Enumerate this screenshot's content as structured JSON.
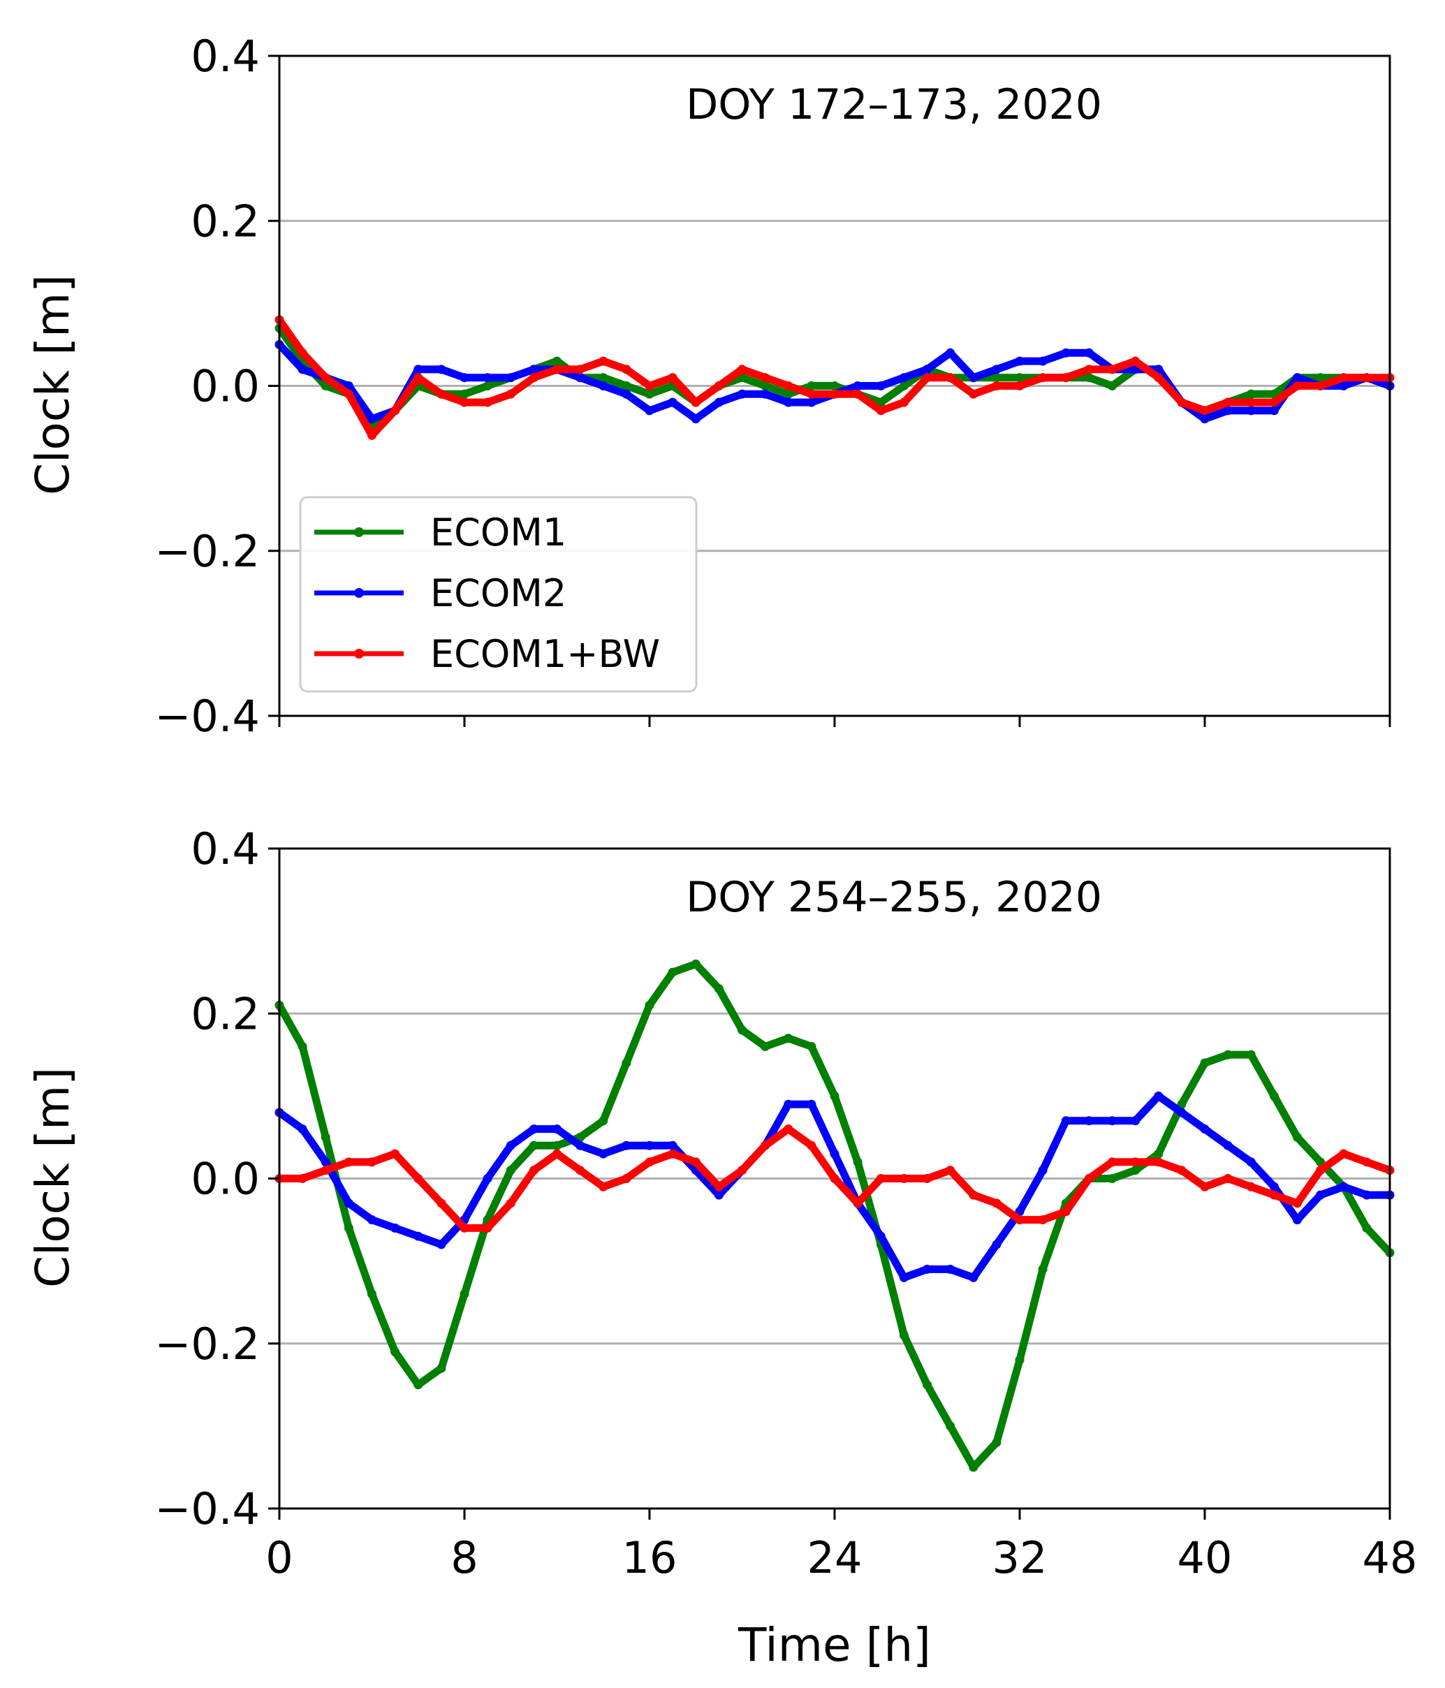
{
  "chart_data": [
    {
      "type": "line",
      "title": "DOY 172–173, 2020",
      "xlabel": "",
      "ylabel": "Clock [m]",
      "xlim": [
        0,
        48
      ],
      "ylim": [
        -0.4,
        0.4
      ],
      "xticks": [
        0,
        8,
        16,
        24,
        32,
        40,
        48
      ],
      "xtick_labels": [
        "",
        "",
        "",
        "",
        "",
        "",
        ""
      ],
      "yticks": [
        -0.4,
        -0.2,
        0.0,
        0.2,
        0.4
      ],
      "ytick_labels": [
        "−0.4",
        "−0.2",
        "0.0",
        "0.2",
        "0.4"
      ],
      "grid": "horizontal",
      "legend": "lower-left",
      "series": [
        {
          "name": "ECOM1",
          "color": "#008000",
          "x": [
            0,
            1,
            2,
            3,
            4,
            5,
            6,
            7,
            8,
            9,
            10,
            11,
            12,
            13,
            14,
            15,
            16,
            17,
            18,
            19,
            20,
            21,
            22,
            23,
            24,
            25,
            26,
            27,
            28,
            29,
            30,
            31,
            32,
            33,
            34,
            35,
            36,
            37,
            38,
            39,
            40,
            41,
            42,
            43,
            44,
            45,
            46,
            47,
            48
          ],
          "y": [
            0.07,
            0.03,
            0.0,
            -0.01,
            -0.05,
            -0.03,
            0.0,
            -0.01,
            -0.01,
            0.0,
            0.01,
            0.02,
            0.03,
            0.01,
            0.01,
            0.0,
            -0.01,
            0.0,
            -0.02,
            0.0,
            0.01,
            0.0,
            -0.01,
            0.0,
            0.0,
            -0.01,
            -0.02,
            0.0,
            0.02,
            0.01,
            0.01,
            0.01,
            0.01,
            0.01,
            0.01,
            0.01,
            0.0,
            0.02,
            0.02,
            -0.02,
            -0.03,
            -0.02,
            -0.01,
            -0.01,
            0.01,
            0.01,
            0.01,
            0.01,
            0.0
          ]
        },
        {
          "name": "ECOM2",
          "color": "#0000ff",
          "x": [
            0,
            1,
            2,
            3,
            4,
            5,
            6,
            7,
            8,
            9,
            10,
            11,
            12,
            13,
            14,
            15,
            16,
            17,
            18,
            19,
            20,
            21,
            22,
            23,
            24,
            25,
            26,
            27,
            28,
            29,
            30,
            31,
            32,
            33,
            34,
            35,
            36,
            37,
            38,
            39,
            40,
            41,
            42,
            43,
            44,
            45,
            46,
            47,
            48
          ],
          "y": [
            0.05,
            0.02,
            0.01,
            0.0,
            -0.04,
            -0.03,
            0.02,
            0.02,
            0.01,
            0.01,
            0.01,
            0.02,
            0.02,
            0.01,
            0.0,
            -0.01,
            -0.03,
            -0.02,
            -0.04,
            -0.02,
            -0.01,
            -0.01,
            -0.02,
            -0.02,
            -0.01,
            0.0,
            0.0,
            0.01,
            0.02,
            0.04,
            0.01,
            0.02,
            0.03,
            0.03,
            0.04,
            0.04,
            0.02,
            0.02,
            0.02,
            -0.02,
            -0.04,
            -0.03,
            -0.03,
            -0.03,
            0.01,
            0.0,
            0.0,
            0.01,
            0.0
          ]
        },
        {
          "name": "ECOM1+BW",
          "color": "#ff0000",
          "x": [
            0,
            1,
            2,
            3,
            4,
            5,
            6,
            7,
            8,
            9,
            10,
            11,
            12,
            13,
            14,
            15,
            16,
            17,
            18,
            19,
            20,
            21,
            22,
            23,
            24,
            25,
            26,
            27,
            28,
            29,
            30,
            31,
            32,
            33,
            34,
            35,
            36,
            37,
            38,
            39,
            40,
            41,
            42,
            43,
            44,
            45,
            46,
            47,
            48
          ],
          "y": [
            0.08,
            0.04,
            0.01,
            -0.01,
            -0.06,
            -0.03,
            0.01,
            -0.01,
            -0.02,
            -0.02,
            -0.01,
            0.01,
            0.02,
            0.02,
            0.03,
            0.02,
            0.0,
            0.01,
            -0.02,
            0.0,
            0.02,
            0.01,
            0.0,
            -0.01,
            -0.01,
            -0.01,
            -0.03,
            -0.02,
            0.01,
            0.01,
            -0.01,
            0.0,
            0.0,
            0.01,
            0.01,
            0.02,
            0.02,
            0.03,
            0.01,
            -0.02,
            -0.03,
            -0.02,
            -0.02,
            -0.02,
            0.0,
            0.0,
            0.01,
            0.01,
            0.01
          ]
        }
      ]
    },
    {
      "type": "line",
      "title": "DOY 254–255, 2020",
      "xlabel": "Time [h]",
      "ylabel": "Clock [m]",
      "xlim": [
        0,
        48
      ],
      "ylim": [
        -0.4,
        0.4
      ],
      "xticks": [
        0,
        8,
        16,
        24,
        32,
        40,
        48
      ],
      "xtick_labels": [
        "0",
        "8",
        "16",
        "24",
        "32",
        "40",
        "48"
      ],
      "yticks": [
        -0.4,
        -0.2,
        0.0,
        0.2,
        0.4
      ],
      "ytick_labels": [
        "−0.4",
        "−0.2",
        "0.0",
        "0.2",
        "0.4"
      ],
      "grid": "horizontal",
      "legend": "",
      "series": [
        {
          "name": "ECOM1",
          "color": "#008000",
          "x": [
            0,
            1,
            2,
            3,
            4,
            5,
            6,
            7,
            8,
            9,
            10,
            11,
            12,
            13,
            14,
            15,
            16,
            17,
            18,
            19,
            20,
            21,
            22,
            23,
            24,
            25,
            26,
            27,
            28,
            29,
            30,
            31,
            32,
            33,
            34,
            35,
            36,
            37,
            38,
            39,
            40,
            41,
            42,
            43,
            44,
            45,
            46,
            47,
            48
          ],
          "y": [
            0.21,
            0.16,
            0.05,
            -0.06,
            -0.14,
            -0.21,
            -0.25,
            -0.23,
            -0.14,
            -0.05,
            0.01,
            0.04,
            0.04,
            0.05,
            0.07,
            0.14,
            0.21,
            0.25,
            0.26,
            0.23,
            0.18,
            0.16,
            0.17,
            0.16,
            0.1,
            0.02,
            -0.08,
            -0.19,
            -0.25,
            -0.3,
            -0.35,
            -0.32,
            -0.22,
            -0.11,
            -0.03,
            0.0,
            0.0,
            0.01,
            0.03,
            0.09,
            0.14,
            0.15,
            0.15,
            0.1,
            0.05,
            0.02,
            -0.01,
            -0.06,
            -0.09
          ]
        },
        {
          "name": "ECOM2",
          "color": "#0000ff",
          "x": [
            0,
            1,
            2,
            3,
            4,
            5,
            6,
            7,
            8,
            9,
            10,
            11,
            12,
            13,
            14,
            15,
            16,
            17,
            18,
            19,
            20,
            21,
            22,
            23,
            24,
            25,
            26,
            27,
            28,
            29,
            30,
            31,
            32,
            33,
            34,
            35,
            36,
            37,
            38,
            39,
            40,
            41,
            42,
            43,
            44,
            45,
            46,
            47,
            48
          ],
          "y": [
            0.08,
            0.06,
            0.02,
            -0.03,
            -0.05,
            -0.06,
            -0.07,
            -0.08,
            -0.05,
            0.0,
            0.04,
            0.06,
            0.06,
            0.04,
            0.03,
            0.04,
            0.04,
            0.04,
            0.01,
            -0.02,
            0.01,
            0.04,
            0.09,
            0.09,
            0.03,
            -0.03,
            -0.07,
            -0.12,
            -0.11,
            -0.11,
            -0.12,
            -0.08,
            -0.04,
            0.01,
            0.07,
            0.07,
            0.07,
            0.07,
            0.1,
            0.08,
            0.06,
            0.04,
            0.02,
            -0.01,
            -0.05,
            -0.02,
            -0.01,
            -0.02,
            -0.02
          ]
        },
        {
          "name": "ECOM1+BW",
          "color": "#ff0000",
          "x": [
            0,
            1,
            2,
            3,
            4,
            5,
            6,
            7,
            8,
            9,
            10,
            11,
            12,
            13,
            14,
            15,
            16,
            17,
            18,
            19,
            20,
            21,
            22,
            23,
            24,
            25,
            26,
            27,
            28,
            29,
            30,
            31,
            32,
            33,
            34,
            35,
            36,
            37,
            38,
            39,
            40,
            41,
            42,
            43,
            44,
            45,
            46,
            47,
            48
          ],
          "y": [
            0.0,
            0.0,
            0.01,
            0.02,
            0.02,
            0.03,
            0.0,
            -0.03,
            -0.06,
            -0.06,
            -0.03,
            0.01,
            0.03,
            0.01,
            -0.01,
            0.0,
            0.02,
            0.03,
            0.02,
            -0.01,
            0.01,
            0.04,
            0.06,
            0.04,
            0.0,
            -0.03,
            0.0,
            0.0,
            0.0,
            0.01,
            -0.02,
            -0.03,
            -0.05,
            -0.05,
            -0.04,
            0.0,
            0.02,
            0.02,
            0.02,
            0.01,
            -0.01,
            0.0,
            -0.01,
            -0.02,
            -0.03,
            0.01,
            0.03,
            0.02,
            0.01
          ]
        }
      ]
    }
  ]
}
